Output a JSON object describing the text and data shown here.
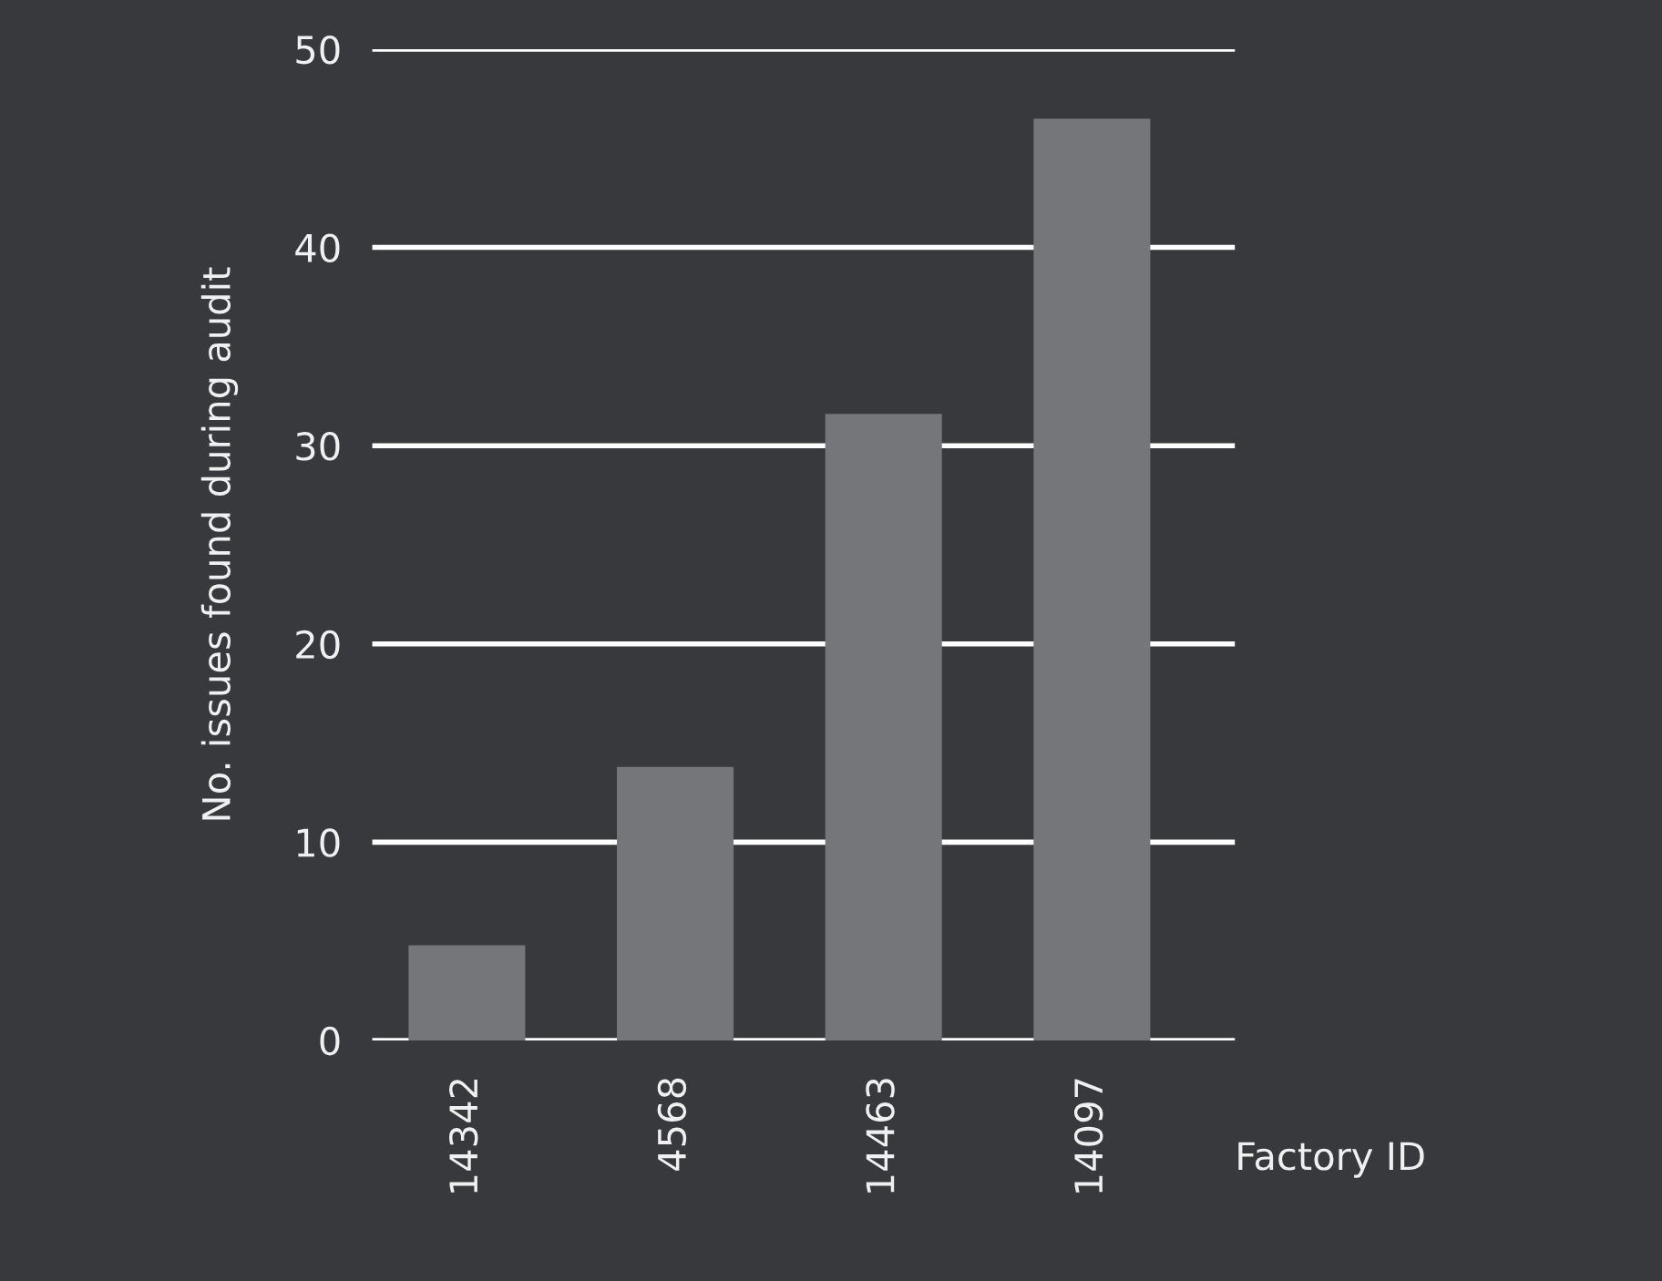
{
  "chart_data": {
    "type": "bar",
    "xlabel": "Factory ID",
    "ylabel": "No. issues found during audit",
    "categories": [
      "14342",
      "4568",
      "14463",
      "14097"
    ],
    "values": [
      4.8,
      13.8,
      31.6,
      46.5
    ],
    "color": "#75767a",
    "ylim": [
      0,
      50
    ],
    "yticks": [
      0,
      10,
      20,
      30,
      40,
      50
    ],
    "grid": "y"
  }
}
